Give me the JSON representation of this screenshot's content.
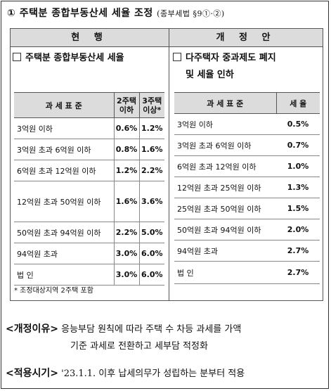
{
  "title": {
    "main": "① 주택분 종합부동산세 세율 조정",
    "law": "(종부세법 §9①·②)"
  },
  "current": {
    "heading": "현   행",
    "section": "주택분 종합부동산세 세율",
    "headers": {
      "base": "과 세 표 준",
      "rate2": "2주택 이하",
      "rate3": "3주택 이상*"
    },
    "rows": [
      {
        "base": "3억원 이하",
        "rate2": "0.6%",
        "rate3": "1.2%"
      },
      {
        "base": "3억원 초과 6억원 이하",
        "rate2": "0.8%",
        "rate3": "1.6%"
      },
      {
        "base": "6억원 초과 12억원 이하",
        "rate2": "1.2%",
        "rate3": "2.2%"
      },
      {
        "base": "12억원 초과 50억원 이하",
        "rate2": "1.6%",
        "rate3": "3.6%"
      },
      {
        "base": "50억원 초과 94억원 이하",
        "rate2": "2.2%",
        "rate3": "5.0%"
      },
      {
        "base": "94억원 초과",
        "rate2": "3.0%",
        "rate3": "6.0%"
      },
      {
        "base": "법 인",
        "rate2": "3.0%",
        "rate3": "6.0%"
      }
    ],
    "note": "* 조정대상지역 2주택 포함"
  },
  "proposed": {
    "heading": "개 정 안",
    "section_line1": "다주택자 중과제도 폐지",
    "section_line2": "및 세율 인하",
    "headers": {
      "base": "과 세 표 준",
      "rate": "세 율"
    },
    "rows": [
      {
        "base": "3억원 이하",
        "rate": "0.5%"
      },
      {
        "base": "3억원 초과 6억원 이하",
        "rate": "0.7%"
      },
      {
        "base": "6억원 초과 12억원 이하",
        "rate": "1.0%"
      },
      {
        "base": "12억원 초과 25억원 이하",
        "rate": "1.3%"
      },
      {
        "base": "25억원 초과 50억원 이하",
        "rate": "1.5%"
      },
      {
        "base": "50억원 초과 94억원 이하",
        "rate": "2.0%"
      },
      {
        "base": "94억원 초과",
        "rate": "2.7%"
      },
      {
        "base": "법 인",
        "rate": "2.7%"
      }
    ]
  },
  "reason": {
    "label": "<개정이유>",
    "line1": "응능부담 원칙에 따라 주택 수 차등 과세를 가액",
    "line2": "기준 과세로 전환하고 세부담 적정화"
  },
  "effective": {
    "label": "<적용시기>",
    "text": "'23.1.1. 이후 납세의무가 성립하는 분부터 적용"
  }
}
